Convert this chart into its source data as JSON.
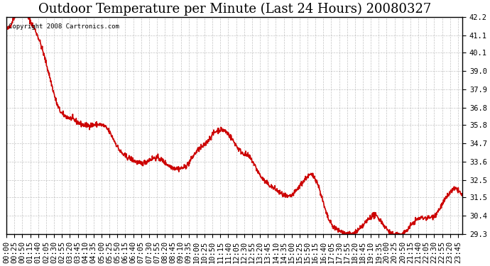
{
  "title": "Outdoor Temperature per Minute (Last 24 Hours) 20080327",
  "copyright_text": "Copyright 2008 Cartronics.com",
  "line_color": "#cc0000",
  "background_color": "#ffffff",
  "plot_bg_color": "#ffffff",
  "grid_color": "#aaaaaa",
  "ylim": [
    29.3,
    42.2
  ],
  "yticks": [
    29.3,
    30.4,
    31.5,
    32.5,
    33.6,
    34.7,
    35.8,
    36.8,
    37.9,
    39.0,
    40.1,
    41.1,
    42.2
  ],
  "xlabel": "",
  "ylabel": "",
  "title_fontsize": 13,
  "tick_fontsize": 7.5,
  "line_width": 1.2,
  "x_tick_interval": 25,
  "total_minutes": 1440
}
